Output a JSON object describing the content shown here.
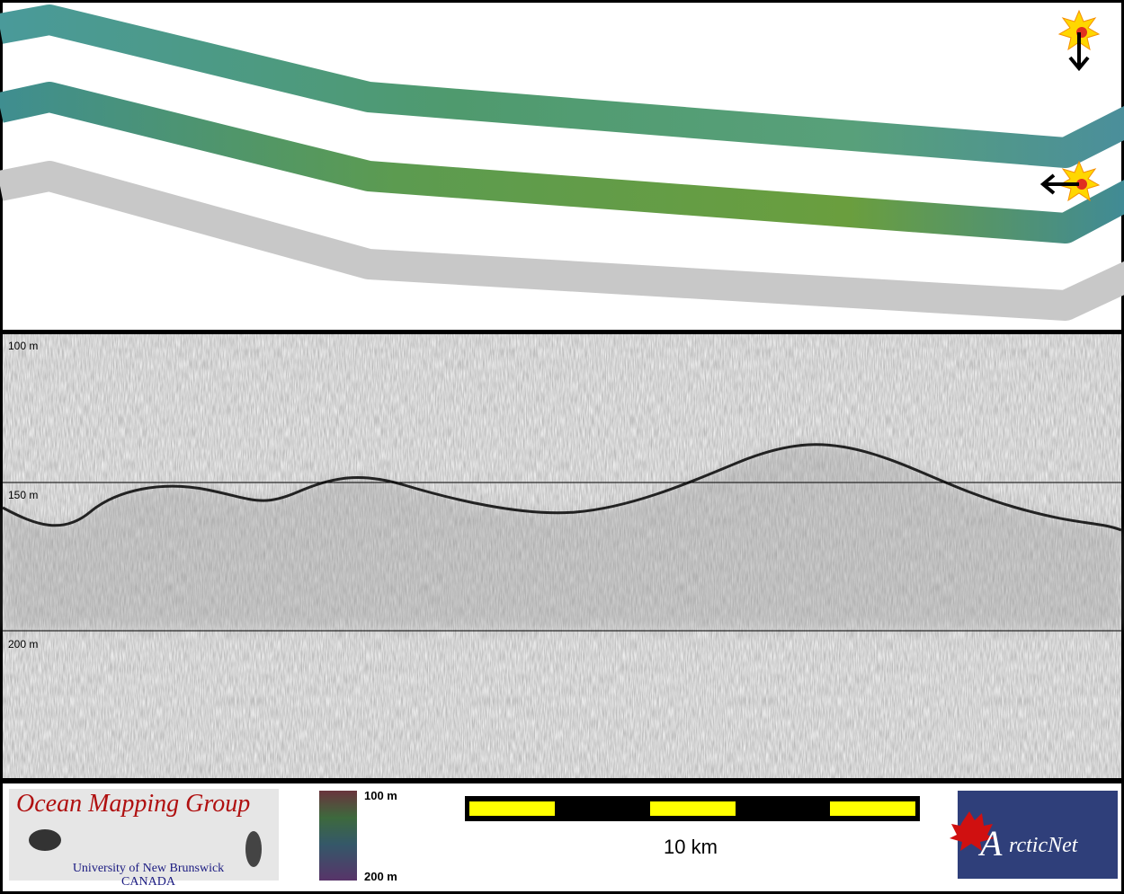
{
  "profile": {
    "depth_labels": [
      "100 m",
      "150 m",
      "200 m"
    ]
  },
  "footer": {
    "logo": {
      "title": "Ocean Mapping Group",
      "line1": "University of New Brunswick",
      "line2": "CANADA"
    },
    "colorbar": {
      "top": "100 m",
      "bottom": "200 m"
    },
    "scalebar": {
      "label": "10 km"
    },
    "partner": {
      "initial": "A",
      "rest": "rcticNet"
    }
  }
}
